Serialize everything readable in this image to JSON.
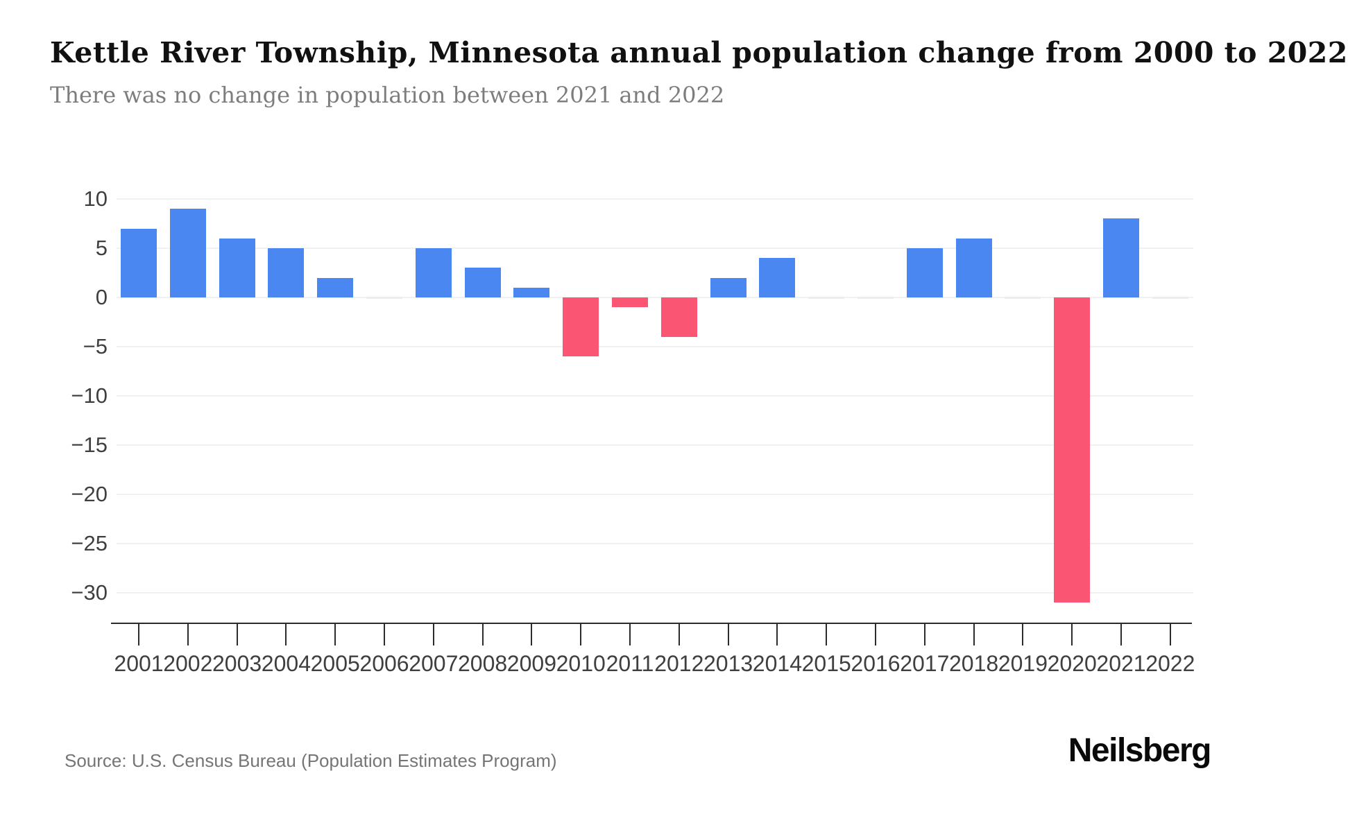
{
  "header": {
    "title": "Kettle River Township, Minnesota annual population change from 2000 to 2022",
    "subtitle": "There was no change in population between 2021 and 2022"
  },
  "footer": {
    "source": "Source: U.S. Census Bureau (Population Estimates Program)",
    "brand": "Neilsberg"
  },
  "chart_data": {
    "type": "bar",
    "title": "Kettle River Township, Minnesota annual population change from 2000 to 2022",
    "subtitle": "There was no change in population between 2021 and 2022",
    "categories": [
      "2001",
      "2002",
      "2003",
      "2004",
      "2005",
      "2006",
      "2007",
      "2008",
      "2009",
      "2010",
      "2011",
      "2012",
      "2013",
      "2014",
      "2015",
      "2016",
      "2017",
      "2018",
      "2019",
      "2020",
      "2021",
      "2022"
    ],
    "values": [
      7,
      9,
      6,
      5,
      2,
      0,
      5,
      3,
      1,
      -6,
      -1,
      -4,
      2,
      4,
      0,
      0,
      5,
      6,
      0,
      -31,
      8,
      0
    ],
    "xlabel": "",
    "ylabel": "",
    "ylim": [
      -33,
      12.5
    ],
    "yticks": [
      10,
      5,
      0,
      -5,
      -10,
      -15,
      -20,
      -25,
      -30
    ],
    "grid": true,
    "legend": false,
    "colors": {
      "positive": "#4a87f0",
      "negative": "#fa5572",
      "zero_bar": "#ededed",
      "gridline": "#f1f1f1",
      "axis": "#2b2b2b"
    }
  }
}
